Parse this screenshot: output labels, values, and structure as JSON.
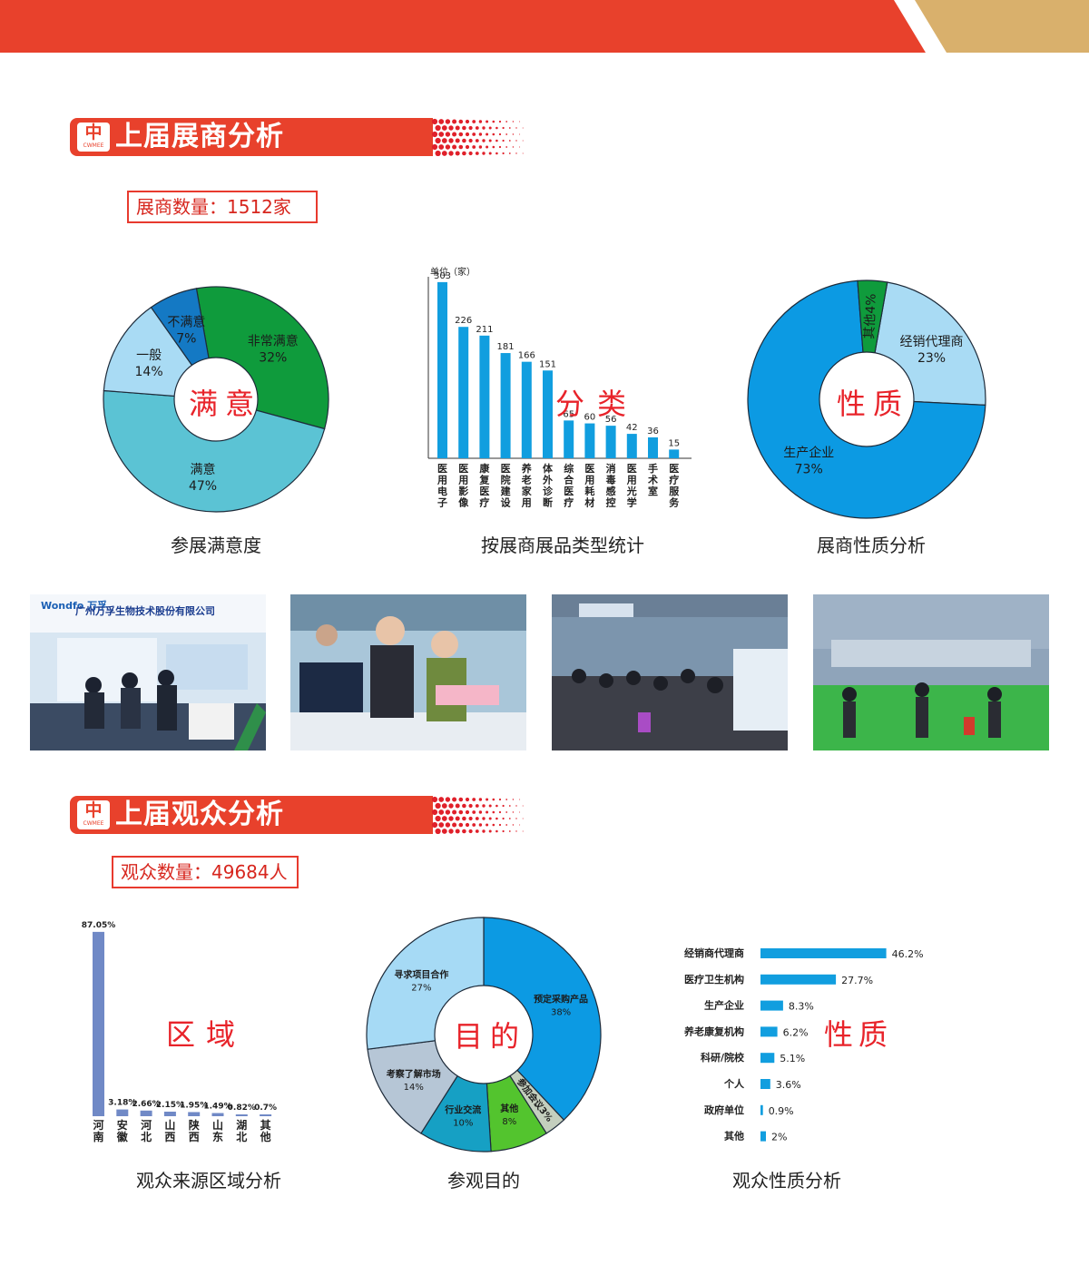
{
  "sections": {
    "exhibitors": {
      "title": "上届展商分析",
      "count_label": "展商数量：1512家"
    },
    "visitors": {
      "title": "上届观众分析",
      "count_label": "观众数量：49684人"
    }
  },
  "logo": {
    "mark": "中",
    "text": "CWMEE"
  },
  "captions": {
    "satisfaction": "参展满意度",
    "category": "按展商展品类型统计",
    "nature": "展商性质分析",
    "region": "观众来源区域分析",
    "purpose": "参观目的",
    "visitor_nature": "观众性质分析"
  },
  "center_words": {
    "satisfaction": "满意",
    "category": "分类",
    "nature": "性质",
    "region": "区域",
    "purpose": "目的",
    "visitor_nature": "性质"
  },
  "colors": {
    "accent_red": "#e8412c",
    "gold": "#d9b06c",
    "blue": "#119edf",
    "dot_red": "#e0202a"
  },
  "photos": [
    {
      "kind": "booth",
      "sign": "广州万孚生物技术股份有限公司",
      "brand": "Wondfo 万孚"
    },
    {
      "kind": "consult"
    },
    {
      "kind": "hall"
    },
    {
      "kind": "hall-green"
    }
  ],
  "chart_data": [
    {
      "id": "satisfaction",
      "type": "pie",
      "slices": [
        {
          "label": "非常满意",
          "value": 32,
          "display": "32%",
          "color": "#0f9b3c"
        },
        {
          "label": "满意",
          "value": 47,
          "display": "47%",
          "color": "#5bc3d4"
        },
        {
          "label": "一般",
          "value": 14,
          "display": "14%",
          "color": "#a9dbf4"
        },
        {
          "label": "不满意",
          "value": 7,
          "display": "7%",
          "color": "#1479c4"
        }
      ]
    },
    {
      "id": "category",
      "type": "bar",
      "unit": "单位（家）",
      "categories": [
        "医用电子",
        "医用影像",
        "康复医疗",
        "医院建设",
        "养老家用",
        "体外诊断",
        "综合医疗",
        "医用耗材",
        "消毒感控",
        "医用光学",
        "手术室",
        "医疗服务"
      ],
      "values": [
        303,
        226,
        211,
        181,
        166,
        151,
        65,
        60,
        56,
        42,
        36,
        15
      ],
      "color": "#119edf"
    },
    {
      "id": "nature",
      "type": "pie",
      "slices": [
        {
          "label": "经销代理商",
          "value": 23,
          "display": "23%",
          "color": "#a9dbf4"
        },
        {
          "label": "生产企业",
          "value": 73,
          "display": "73%",
          "color": "#0c9ae3"
        },
        {
          "label": "其他",
          "value": 4,
          "display": "4%",
          "color": "#0f9b3c"
        }
      ]
    },
    {
      "id": "region",
      "type": "bar",
      "categories": [
        "河南",
        "安徽",
        "河北",
        "山西",
        "陕西",
        "山东",
        "湖北",
        "其他"
      ],
      "values": [
        87.05,
        3.18,
        2.66,
        2.15,
        1.95,
        1.49,
        0.82,
        0.7
      ],
      "labels": [
        "87.05%",
        "3.18%",
        "2.66%",
        "2.15%",
        "1.95%",
        "1.49%",
        "0.82%",
        "0.7%"
      ],
      "color": "#7089c6"
    },
    {
      "id": "purpose",
      "type": "pie",
      "slices": [
        {
          "label": "预定采购产品",
          "value": 38,
          "display": "38%",
          "color": "#0c9ae3"
        },
        {
          "label": "参加会议",
          "value": 3,
          "display": "3%",
          "color": "#c4cfbe"
        },
        {
          "label": "其他",
          "value": 8,
          "display": "8%",
          "color": "#53c42e"
        },
        {
          "label": "行业交流",
          "value": 10,
          "display": "10%",
          "color": "#16a0c4"
        },
        {
          "label": "考察了解市场",
          "value": 14,
          "display": "14%",
          "color": "#b6c6d6"
        },
        {
          "label": "寻求项目合作",
          "value": 27,
          "display": "27%",
          "color": "#a6daf5"
        }
      ]
    },
    {
      "id": "visitor_nature",
      "type": "bar",
      "orientation": "horizontal",
      "categories": [
        "经销商代理商",
        "医疗卫生机构",
        "生产企业",
        "养老康复机构",
        "科研/院校",
        "个人",
        "政府单位",
        "其他"
      ],
      "values": [
        46.2,
        27.7,
        8.3,
        6.2,
        5.1,
        3.6,
        0.9,
        2
      ],
      "labels": [
        "46.2%",
        "27.7%",
        "8.3%",
        "6.2%",
        "5.1%",
        "3.6%",
        "0.9%",
        "2%"
      ],
      "color": "#119edf"
    }
  ]
}
